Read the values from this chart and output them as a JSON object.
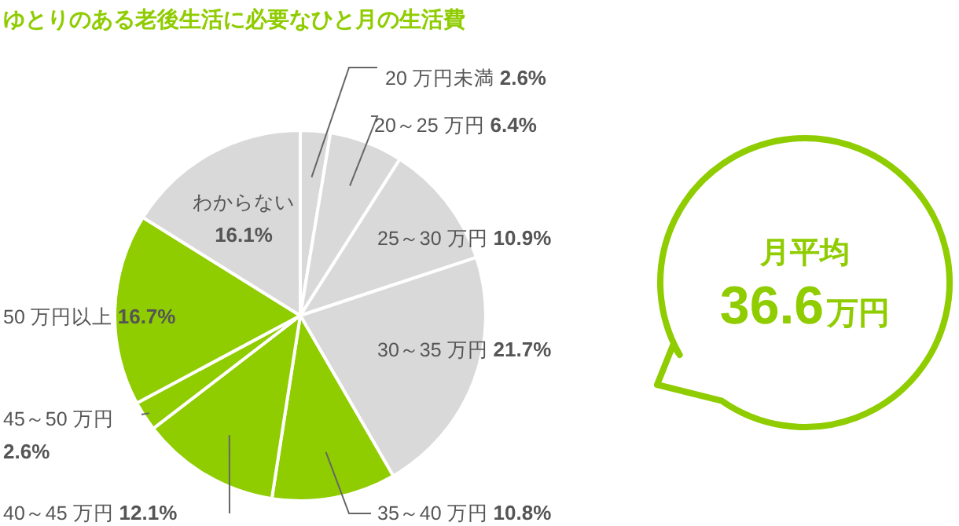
{
  "chart_data": {
    "type": "pie",
    "title": "ゆとりのある老後生活に必要なひと月の生活費",
    "categories": [
      "20 万円未満",
      "20～25 万円",
      "25～30 万円",
      "30～35 万円",
      "35～40 万円",
      "40～45 万円",
      "45～50 万円",
      "50 万円以上",
      "わからない"
    ],
    "values": [
      2.6,
      6.4,
      10.9,
      21.7,
      10.8,
      12.1,
      2.6,
      16.7,
      16.1
    ],
    "colors": [
      "#d9d9d9",
      "#d9d9d9",
      "#d9d9d9",
      "#d9d9d9",
      "#8fcc00",
      "#8fcc00",
      "#8fcc00",
      "#8fcc00",
      "#d9d9d9"
    ],
    "value_labels": [
      "2.6%",
      "6.4%",
      "10.9%",
      "21.7%",
      "10.8%",
      "12.1%",
      "2.6%",
      "16.7%",
      "16.1%"
    ],
    "annotations": [
      "月平均",
      "36.6万円"
    ]
  }
}
